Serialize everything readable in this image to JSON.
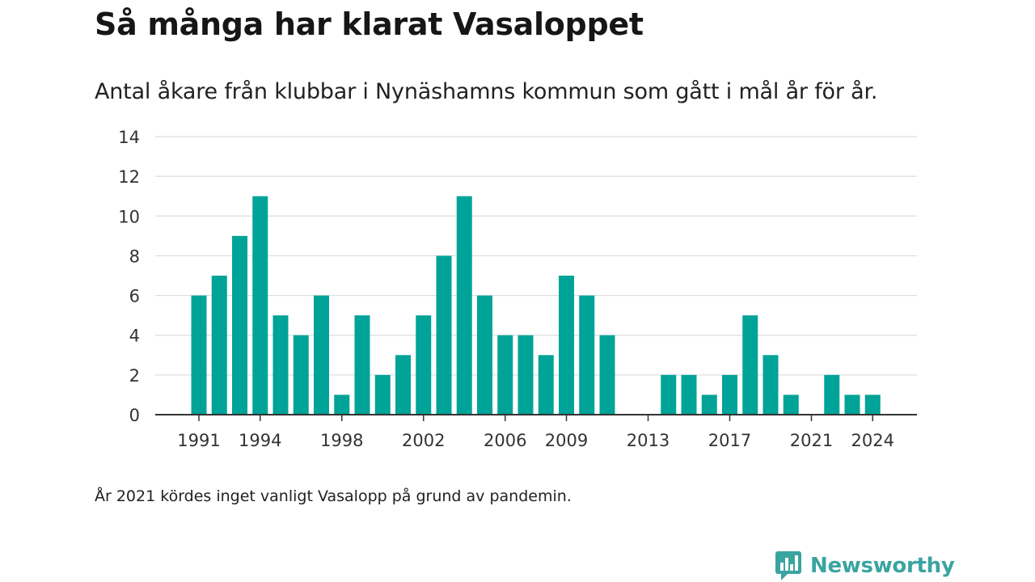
{
  "title": "Så många har klarat Vasaloppet",
  "subtitle": "Antal åkare från klubbar i Nynäshamns kommun som gått i mål år för år.",
  "note": "År 2021 kördes inget vanligt Vasalopp på grund av pandemin.",
  "brand": {
    "name": "Newsworthy",
    "icon": "newsworthy-logo-icon",
    "color": "#3aa4a0"
  },
  "chart_data": {
    "type": "bar",
    "x": [
      1991,
      1992,
      1993,
      1994,
      1995,
      1996,
      1997,
      1998,
      1999,
      2000,
      2001,
      2002,
      2003,
      2004,
      2005,
      2006,
      2007,
      2008,
      2009,
      2010,
      2011,
      2012,
      2013,
      2014,
      2015,
      2016,
      2017,
      2018,
      2019,
      2020,
      2021,
      2022,
      2023,
      2024
    ],
    "values": [
      6,
      7,
      9,
      11,
      5,
      4,
      6,
      1,
      5,
      2,
      3,
      5,
      8,
      11,
      6,
      4,
      4,
      3,
      7,
      6,
      4,
      0,
      0,
      2,
      2,
      1,
      2,
      5,
      3,
      1,
      0,
      2,
      1,
      1
    ],
    "x_ticks": [
      1991,
      1994,
      1998,
      2002,
      2006,
      2009,
      2013,
      2017,
      2021,
      2024
    ],
    "y_ticks": [
      0,
      2,
      4,
      6,
      8,
      10,
      12,
      14
    ],
    "ylim": [
      0,
      14
    ],
    "xlabel": "",
    "ylabel": "",
    "grid": true,
    "bar_color": "#00a398",
    "grid_color": "#dddddd",
    "axis_color": "#333333"
  }
}
